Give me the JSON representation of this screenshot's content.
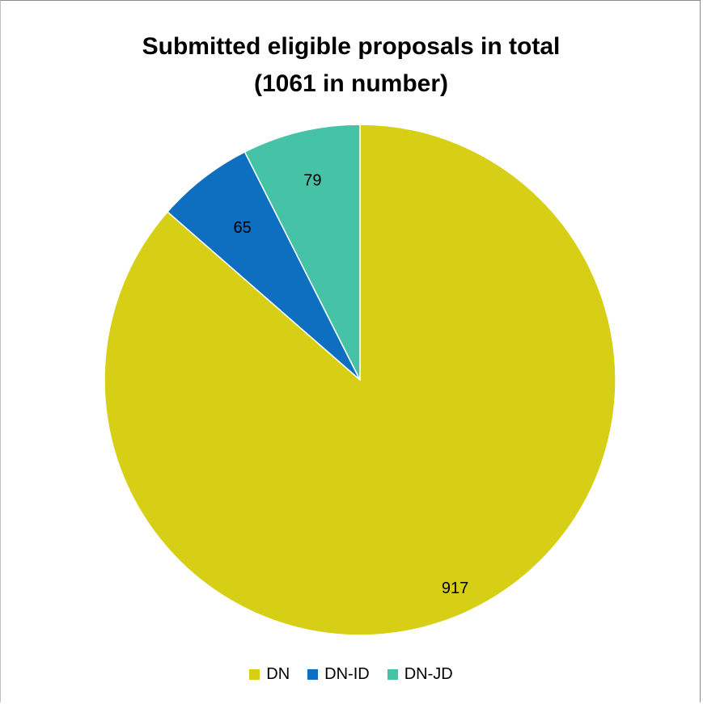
{
  "chart_data": {
    "type": "pie",
    "title": "Submitted eligible proposals in total",
    "subtitle": "(1061 in number)",
    "categories": [
      "DN",
      "DN-ID",
      "DN-JD"
    ],
    "values": [
      917,
      65,
      79
    ],
    "data_labels": [
      "917",
      "65",
      "79"
    ],
    "colors": [
      "#d6cf16",
      "#0e6fc1",
      "#46c3a6"
    ],
    "start_angle_deg": 0,
    "direction": "clockwise",
    "legend_position": "bottom"
  }
}
